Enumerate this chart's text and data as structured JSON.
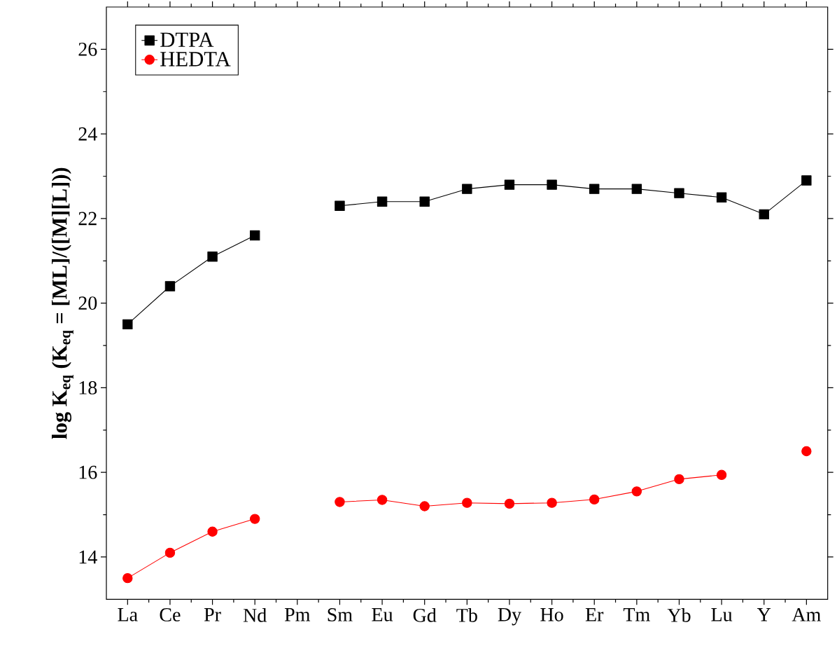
{
  "chart_data": {
    "type": "line",
    "ylabel": "log K$_{eq}$ (K$_{eq}$ = [ML]/([M][L]))",
    "categories": [
      "La",
      "Ce",
      "Pr",
      "Nd",
      "Pm",
      "Sm",
      "Eu",
      "Gd",
      "Tb",
      "Dy",
      "Ho",
      "Er",
      "Tm",
      "Yb",
      "Lu",
      "Y",
      "Am"
    ],
    "series": [
      {
        "name": "DTPA",
        "color": "#000000",
        "marker": "square",
        "values": [
          19.5,
          20.4,
          21.1,
          21.6,
          null,
          22.3,
          22.4,
          22.4,
          22.7,
          22.8,
          22.8,
          22.7,
          22.7,
          22.6,
          22.5,
          22.1,
          22.9
        ]
      },
      {
        "name": "HEDTA",
        "color": "#ff0000",
        "marker": "circle",
        "values": [
          13.5,
          14.1,
          14.6,
          14.9,
          null,
          15.3,
          15.35,
          15.2,
          15.28,
          15.26,
          15.28,
          15.36,
          15.55,
          15.84,
          15.94,
          null,
          16.5
        ]
      }
    ],
    "ylim": [
      13,
      27
    ],
    "yticks": [
      14,
      16,
      18,
      20,
      22,
      24,
      26
    ],
    "legend": "top left",
    "grid": false
  }
}
